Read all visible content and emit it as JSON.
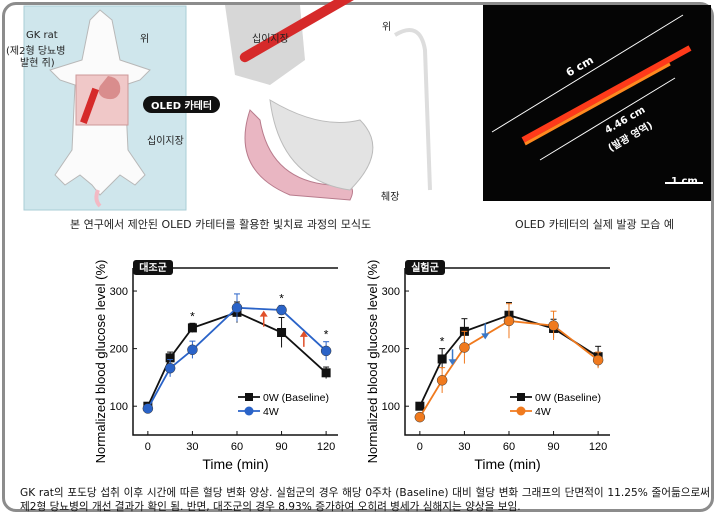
{
  "illustration": {
    "rat_label": "GK rat",
    "rat_sublabel_1": "(제2형 당뇨병",
    "rat_sublabel_2": "발현 쥐)",
    "stomach_label": "위",
    "duodenum_label_rat": "십이지장",
    "catheter_label": "OLED 카테터",
    "duodenum_label": "십이지장",
    "stomach_direction_label": "위",
    "pancreas_label": "췌장",
    "caption": "본 연구에서 제안된 OLED 카테터를 활용한 빛치료 과정의 모식도"
  },
  "photo": {
    "total_length": "6 cm",
    "emit_length": "4.46 cm",
    "emit_label": "(발광 영역)",
    "scale_bar": "1 cm",
    "caption": "OLED 카테터의 실제 발광 모습 예"
  },
  "chart_data": [
    {
      "type": "line",
      "panel_label": "대조군",
      "xlabel": "Time (min)",
      "ylabel": "Normalized blood glucose level (%)",
      "xticks": [
        0,
        30,
        60,
        90,
        120
      ],
      "yticks": [
        100,
        200,
        300
      ],
      "xlim": [
        -10,
        128
      ],
      "ylim": [
        50,
        340
      ],
      "legend_placement": "bottom-right",
      "x": [
        0,
        15,
        30,
        60,
        90,
        120
      ],
      "series": [
        {
          "name": "0W (Baseline)",
          "color": "#111111",
          "marker": "square",
          "values": [
            100,
            184,
            236,
            263,
            228,
            158
          ],
          "errors": [
            5,
            10,
            8,
            18,
            26,
            10
          ]
        },
        {
          "name": "4W",
          "color": "#2a63c8",
          "marker": "circle",
          "values": [
            96,
            166,
            198,
            271,
            267,
            196
          ],
          "errors": [
            4,
            15,
            15,
            24,
            8,
            16
          ]
        }
      ],
      "significance_x": [
        30,
        90,
        120
      ],
      "arrows": {
        "direction": "up",
        "color": "#e0502a",
        "x": [
          78,
          105
        ],
        "y": [
          252,
          217
        ]
      }
    },
    {
      "type": "line",
      "panel_label": "실험군",
      "xlabel": "Time (min)",
      "ylabel": "Normalized blood glucose level (%)",
      "xticks": [
        0,
        30,
        60,
        90,
        120
      ],
      "yticks": [
        100,
        200,
        300
      ],
      "xlim": [
        -10,
        128
      ],
      "ylim": [
        50,
        340
      ],
      "legend_placement": "bottom-right",
      "x": [
        0,
        15,
        30,
        60,
        90,
        120
      ],
      "series": [
        {
          "name": "0W (Baseline)",
          "color": "#111111",
          "marker": "square",
          "values": [
            100,
            182,
            230,
            258,
            235,
            186
          ],
          "errors": [
            4,
            18,
            22,
            22,
            16,
            18
          ]
        },
        {
          "name": "4W",
          "color": "#f07a1e",
          "marker": "circle",
          "values": [
            81,
            145,
            202,
            248,
            240,
            180
          ],
          "errors": [
            5,
            22,
            28,
            30,
            25,
            14
          ]
        }
      ],
      "significance_x": [
        15
      ],
      "arrows": {
        "direction": "down",
        "color": "#3a78c8",
        "x": [
          22,
          44
        ],
        "y": [
          185,
          230
        ]
      }
    }
  ],
  "description": "GK rat의 포도당 섭취 이후 시간에 따른 혈당 변화 양상. 실험군의 경우 해당 0주차 (Baseline) 대비 혈당 변화 그래프의 단면적이 11.25% 줄어듦으로써 제2형 당뇨병의 개선 결과가 확인 됨. 반면, 대조군의 경우 8.93% 증가하여 오히려 병세가 심해지는 양상을 보임."
}
